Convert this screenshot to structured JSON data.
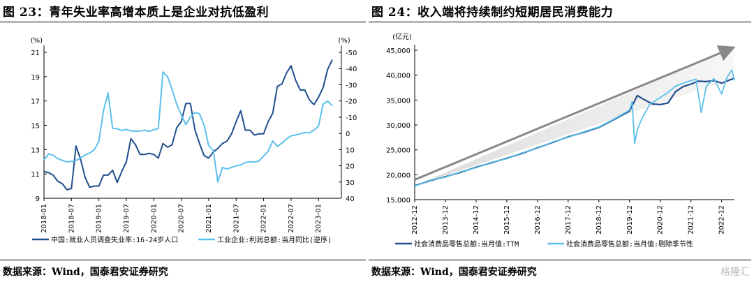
{
  "left": {
    "title": "图 23：青年失业率高增本质上是企业对抗低盈利",
    "source": "数据来源：Wind，国泰君安证券研究"
  },
  "right": {
    "title": "图 24：收入端将持续制约短期居民消费能力",
    "source": "数据来源：Wind，国泰君安证券研究"
  },
  "watermark": "格隆汇",
  "colors": {
    "dark": "#1f4e8c",
    "light": "#5bc0eb",
    "arrow": "#888888"
  },
  "chart_data": [
    {
      "type": "line",
      "y_unit": "(%)",
      "y2_unit": "(%)",
      "ylim": [
        9,
        21
      ],
      "yticks": [
        9,
        11,
        13,
        15,
        17,
        19,
        21
      ],
      "y2lim": [
        -50,
        40
      ],
      "y2_reversed": true,
      "y2ticks": [
        -50,
        -40,
        -30,
        -20,
        -10,
        0,
        10,
        20,
        30,
        40
      ],
      "xticks": [
        "2018-01",
        "2018-07",
        "2019-01",
        "2019-07",
        "2020-01",
        "2020-07",
        "2021-01",
        "2021-07",
        "2022-01",
        "2022-07",
        "2023-01"
      ],
      "x_start": "2018-01",
      "x_end": "2023-06",
      "series": [
        {
          "name": "中国:就业人员调查失业率:16-24岁人口",
          "axis": "left",
          "color": "#1f4e8c",
          "values": [
            11.2,
            11.1,
            10.9,
            10.4,
            10.2,
            9.7,
            9.8,
            13.3,
            12.2,
            10.7,
            9.9,
            10.0,
            10.0,
            10.9,
            10.9,
            11.3,
            10.3,
            11.2,
            12.0,
            13.9,
            13.4,
            12.6,
            12.6,
            12.7,
            12.6,
            12.3,
            13.5,
            13.2,
            13.4,
            14.8,
            15.3,
            16.8,
            16.8,
            14.6,
            13.5,
            12.5,
            12.3,
            12.8,
            13.1,
            13.5,
            13.7,
            14.3,
            15.3,
            16.2,
            14.6,
            14.6,
            14.2,
            14.3,
            14.3,
            15.3,
            16.0,
            18.2,
            18.4,
            19.3,
            19.9,
            18.7,
            17.9,
            17.9,
            17.1,
            16.7,
            17.3,
            18.1,
            19.6,
            20.4
          ]
        },
        {
          "name": "工业企业:利润总额:当月同比(逆序)",
          "axis": "right",
          "color": "#5bc0eb",
          "values": [
            16.4,
            12.7,
            13.5,
            15.6,
            16.6,
            17.5,
            17.3,
            16.7,
            15.1,
            13.3,
            12.1,
            10.1,
            5.0,
            -14.0,
            -25.0,
            -3.2,
            -2.8,
            -1.8,
            -2.4,
            -1.6,
            -1.2,
            -1.5,
            -2.0,
            -1.2,
            -2.3,
            -3.0,
            -37.9,
            -35.0,
            -27.0,
            -18.0,
            -11.5,
            -5.4,
            -10.0,
            -13.0,
            -12.0,
            -5.0,
            7.5,
            10.5,
            30.0,
            21.0,
            22.0,
            21.0,
            20.0,
            19.5,
            18.0,
            17.5,
            17.6,
            17.0,
            14.0,
            11.0,
            4.7,
            8.0,
            6.0,
            3.5,
            1.5,
            1.0,
            0.3,
            -0.5,
            -0.3,
            -2.0,
            -4.5,
            -18.0,
            -20.0,
            -17.0
          ]
        }
      ]
    },
    {
      "type": "line",
      "y_unit": "(亿元)",
      "ylim": [
        15000,
        45000
      ],
      "yticks": [
        "15,000",
        "20,000",
        "25,000",
        "30,000",
        "35,000",
        "40,000",
        "45,000"
      ],
      "xticks": [
        "2012-12",
        "2013-12",
        "2014-12",
        "2015-12",
        "2016-12",
        "2017-12",
        "2018-12",
        "2019-12",
        "2020-12",
        "2021-12",
        "2022-12"
      ],
      "x_start": "2012-12",
      "x_end": "2023-05",
      "trend_arrow": {
        "from": [
          "2012-12",
          19000
        ],
        "to": [
          "2023-05",
          45600
        ]
      },
      "series": [
        {
          "name": "社会消费品零售总额:当月值:TTM",
          "color": "#1f4e8c",
          "x": [
            "2012-12",
            "2013-06",
            "2013-12",
            "2014-06",
            "2014-12",
            "2015-06",
            "2015-12",
            "2016-06",
            "2016-12",
            "2017-06",
            "2017-12",
            "2018-06",
            "2018-12",
            "2019-06",
            "2019-12",
            "2020-03",
            "2020-06",
            "2020-09",
            "2020-12",
            "2021-03",
            "2021-06",
            "2021-09",
            "2021-12",
            "2022-03",
            "2022-06",
            "2022-09",
            "2022-12",
            "2023-03",
            "2023-05"
          ],
          "y": [
            17800,
            18800,
            19600,
            20500,
            21500,
            22400,
            23300,
            24300,
            25400,
            26500,
            27600,
            28500,
            29500,
            31100,
            32800,
            35900,
            35000,
            34200,
            34100,
            34400,
            36700,
            37700,
            38200,
            38800,
            38700,
            38900,
            38400,
            39000,
            39400
          ]
        },
        {
          "name": "社会消费品零售总额:当月值:剔除季节性",
          "color": "#5bc0eb",
          "x": [
            "2012-12",
            "2013-06",
            "2013-12",
            "2014-06",
            "2014-12",
            "2015-06",
            "2015-12",
            "2016-06",
            "2016-12",
            "2017-06",
            "2017-12",
            "2018-06",
            "2018-12",
            "2019-06",
            "2019-12",
            "2020-01",
            "2020-02",
            "2020-03",
            "2020-05",
            "2020-08",
            "2020-12",
            "2021-03",
            "2021-06",
            "2021-09",
            "2021-12",
            "2022-02",
            "2022-04",
            "2022-06",
            "2022-09",
            "2022-12",
            "2023-02",
            "2023-04",
            "2023-05"
          ],
          "y": [
            17700,
            18900,
            19500,
            20600,
            21400,
            22500,
            23200,
            24400,
            25300,
            26600,
            27500,
            28600,
            29600,
            31200,
            33000,
            34600,
            26300,
            29000,
            31500,
            34200,
            35500,
            36500,
            37800,
            38400,
            38900,
            39200,
            32500,
            37800,
            39300,
            36200,
            39500,
            41000,
            38900
          ]
        }
      ]
    }
  ]
}
